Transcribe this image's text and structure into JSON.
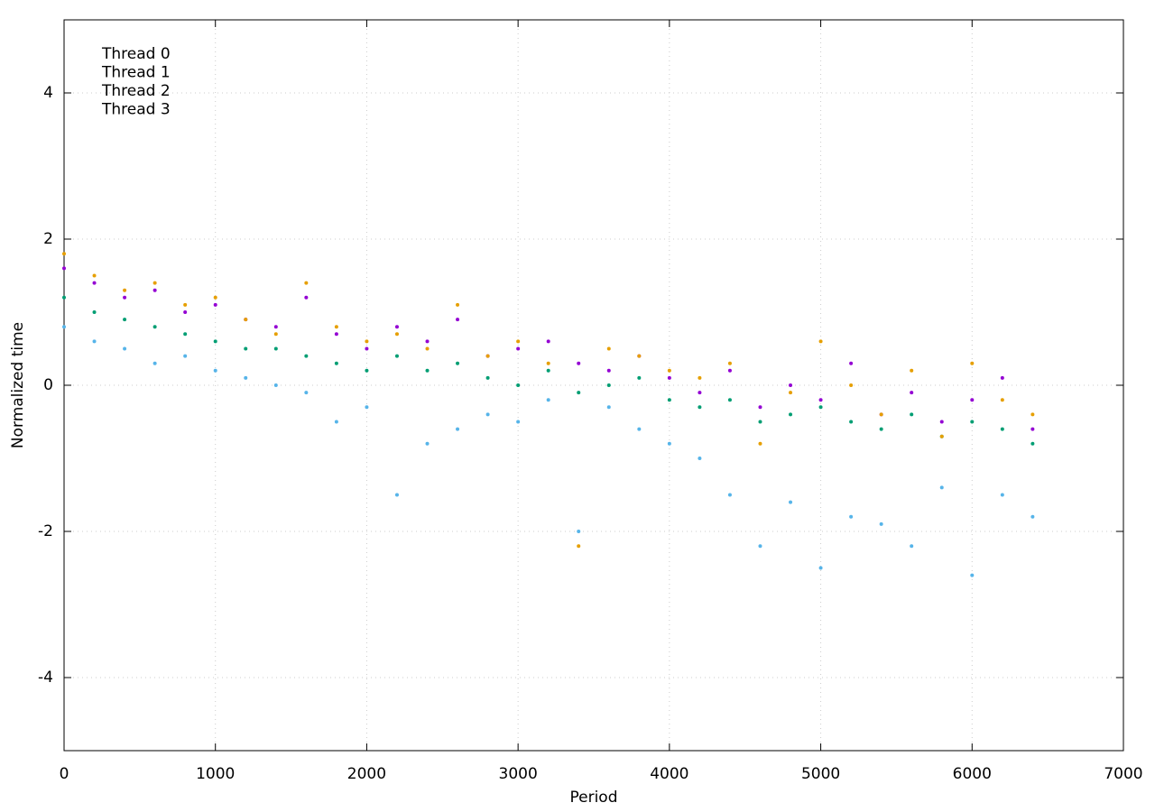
{
  "chart_data": {
    "type": "scatter",
    "x_label": "Period",
    "y_label": "Normalized time",
    "x": [
      0,
      200,
      400,
      600,
      800,
      1000,
      1200,
      1400,
      1600,
      1800,
      2000,
      2200,
      2400,
      2600,
      2800,
      3000,
      3200,
      3400,
      3600,
      3800,
      4000,
      4200,
      4400,
      4600,
      4800,
      5000,
      5200,
      5400,
      5600,
      5800,
      6000,
      6200,
      6400
    ],
    "series": [
      {
        "name": "Thread 0",
        "color": "#9400d3",
        "values": [
          1.6,
          1.4,
          1.2,
          1.3,
          1.0,
          1.1,
          0.9,
          0.8,
          1.2,
          0.7,
          0.5,
          0.8,
          0.6,
          0.9,
          0.4,
          0.5,
          0.6,
          0.3,
          0.2,
          0.4,
          0.1,
          -0.1,
          0.2,
          -0.3,
          0.0,
          -0.2,
          0.3,
          -0.4,
          -0.1,
          -0.5,
          -0.2,
          0.1,
          -0.6
        ]
      },
      {
        "name": "Thread 1",
        "color": "#009e73",
        "values": [
          1.2,
          1.0,
          0.9,
          0.8,
          0.7,
          0.6,
          0.5,
          0.5,
          0.4,
          0.3,
          0.2,
          0.4,
          0.2,
          0.3,
          0.1,
          0.0,
          0.2,
          -0.1,
          0.0,
          0.1,
          -0.2,
          -0.3,
          -0.2,
          -0.5,
          -0.4,
          -0.3,
          -0.5,
          -0.6,
          -0.4,
          -0.7,
          -0.5,
          -0.6,
          -0.8
        ]
      },
      {
        "name": "Thread 2",
        "color": "#56b4e9",
        "values": [
          0.8,
          0.6,
          0.5,
          0.3,
          0.4,
          0.2,
          0.1,
          0.0,
          -0.1,
          -0.5,
          -0.3,
          -1.5,
          -0.8,
          -0.6,
          -0.4,
          -0.5,
          -0.2,
          -2.0,
          -0.3,
          -0.6,
          -0.8,
          -1.0,
          -1.5,
          -2.2,
          -1.6,
          -2.5,
          -1.8,
          -1.9,
          -2.2,
          -1.4,
          -2.6,
          -1.5,
          -1.8
        ]
      },
      {
        "name": "Thread 3",
        "color": "#e69f00",
        "values": [
          1.8,
          1.5,
          1.3,
          1.4,
          1.1,
          1.2,
          0.9,
          0.7,
          1.4,
          0.8,
          0.6,
          0.7,
          0.5,
          1.1,
          0.4,
          0.6,
          0.3,
          -2.2,
          0.5,
          0.4,
          0.2,
          0.1,
          0.3,
          -0.8,
          -0.1,
          0.6,
          0.0,
          -0.4,
          0.2,
          -0.7,
          0.3,
          -0.2,
          -0.4
        ]
      }
    ],
    "xlim": [
      0,
      7000
    ],
    "xticks": [
      0,
      1000,
      2000,
      3000,
      4000,
      5000,
      6000,
      7000
    ],
    "ylim": [
      -5,
      5
    ],
    "yticks": [
      -4,
      -2,
      0,
      2,
      4
    ],
    "grid": true,
    "legend": "top-left"
  }
}
